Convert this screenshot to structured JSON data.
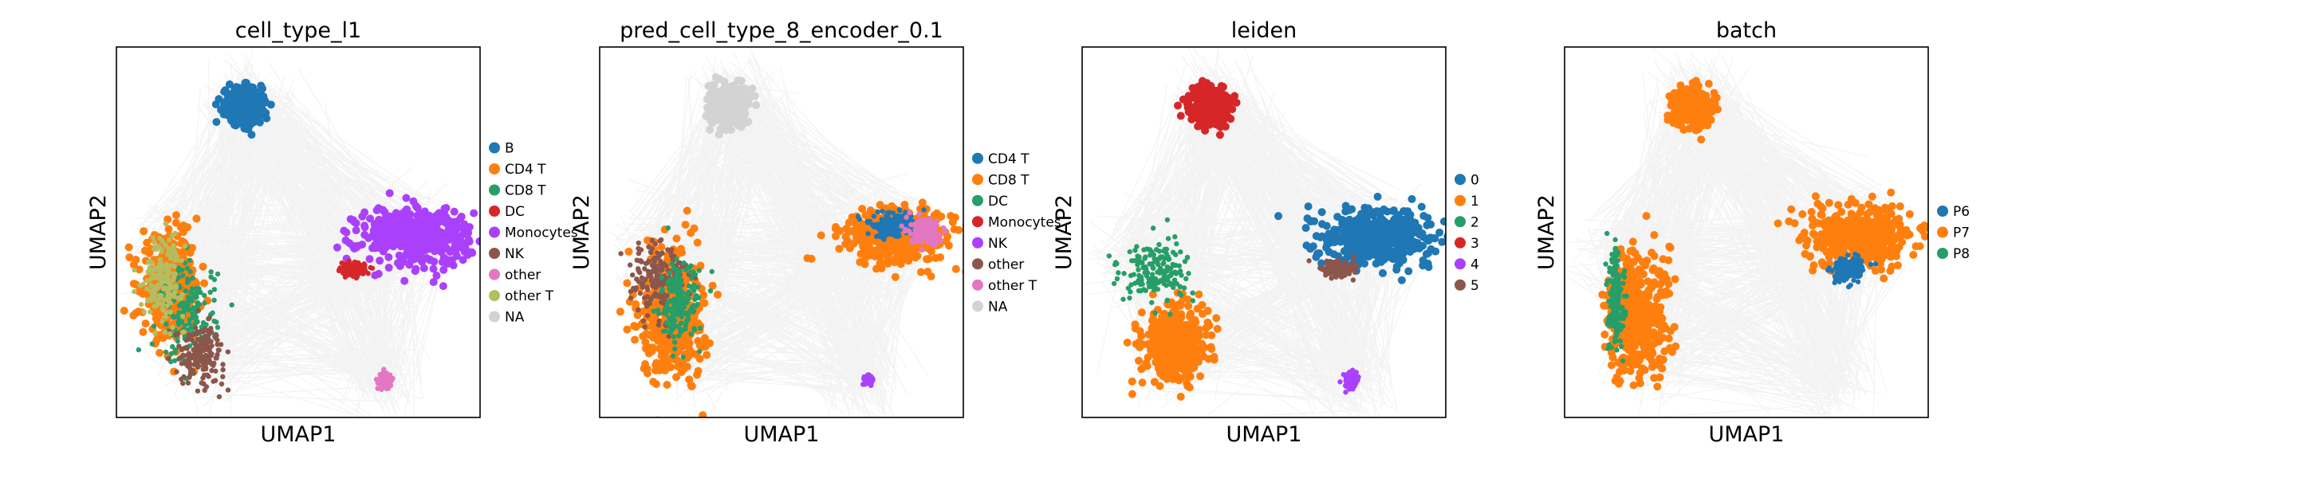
{
  "figure": {
    "panels": [
      {
        "title": "cell_type_l1",
        "xlabel": "UMAP1",
        "ylabel": "UMAP2",
        "legend": [
          {
            "label": "B",
            "color": "#1f77b4"
          },
          {
            "label": "CD4 T",
            "color": "#ff7f0e"
          },
          {
            "label": "CD8 T",
            "color": "#279e68"
          },
          {
            "label": "DC",
            "color": "#d62728"
          },
          {
            "label": "Monocytes",
            "color": "#aa40fc"
          },
          {
            "label": "NK",
            "color": "#8c564b"
          },
          {
            "label": "other",
            "color": "#e377c2"
          },
          {
            "label": "other T",
            "color": "#b5bd61"
          },
          {
            "label": "NA",
            "color": "#d3d3d3"
          }
        ]
      },
      {
        "title": "pred_cell_type_8_encoder_0.1",
        "xlabel": "UMAP1",
        "ylabel": "UMAP2",
        "legend": [
          {
            "label": "CD4 T",
            "color": "#1f77b4"
          },
          {
            "label": "CD8 T",
            "color": "#ff7f0e"
          },
          {
            "label": "DC",
            "color": "#279e68"
          },
          {
            "label": "Monocytes",
            "color": "#d62728"
          },
          {
            "label": "NK",
            "color": "#aa40fc"
          },
          {
            "label": "other",
            "color": "#8c564b"
          },
          {
            "label": "other T",
            "color": "#e377c2"
          },
          {
            "label": "NA",
            "color": "#d3d3d3"
          }
        ]
      },
      {
        "title": "leiden",
        "xlabel": "UMAP1",
        "ylabel": "UMAP2",
        "legend": [
          {
            "label": "0",
            "color": "#1f77b4"
          },
          {
            "label": "1",
            "color": "#ff7f0e"
          },
          {
            "label": "2",
            "color": "#279e68"
          },
          {
            "label": "3",
            "color": "#d62728"
          },
          {
            "label": "4",
            "color": "#aa40fc"
          },
          {
            "label": "5",
            "color": "#8c564b"
          }
        ]
      },
      {
        "title": "batch",
        "xlabel": "UMAP1",
        "ylabel": "UMAP2",
        "legend": [
          {
            "label": "P6",
            "color": "#1f77b4"
          },
          {
            "label": "P7",
            "color": "#ff7f0e"
          },
          {
            "label": "P8",
            "color": "#279e68"
          }
        ]
      }
    ]
  },
  "chart_data": [
    {
      "type": "scatter",
      "title": "cell_type_l1",
      "xlabel": "UMAP1",
      "ylabel": "UMAP2",
      "xticks": [],
      "yticks": [],
      "grid": false,
      "legend_position": "right",
      "paga_edges": true,
      "edge_color": "#808080",
      "clusters": [
        {
          "name": "B",
          "color": "#1f77b4",
          "center": [
            0.35,
            0.84
          ],
          "spread": [
            0.045,
            0.045
          ],
          "rank": 1
        },
        {
          "name": "CD4 T",
          "color": "#ff7f0e",
          "center": [
            0.15,
            0.35
          ],
          "spread": [
            0.07,
            0.12
          ],
          "rank": 1
        },
        {
          "name": "CD8 T",
          "color": "#279e68",
          "center": [
            0.2,
            0.28
          ],
          "spread": [
            0.07,
            0.12
          ],
          "rank": 2
        },
        {
          "name": "NK",
          "color": "#8c564b",
          "center": [
            0.23,
            0.17
          ],
          "spread": [
            0.06,
            0.07
          ],
          "rank": 3
        },
        {
          "name": "Monocytes",
          "color": "#aa40fc",
          "center": [
            0.82,
            0.49
          ],
          "spread": [
            0.14,
            0.07
          ],
          "rank": 1
        },
        {
          "name": "DC",
          "color": "#d62728",
          "center": [
            0.65,
            0.4
          ],
          "spread": [
            0.03,
            0.015
          ],
          "rank": 2
        },
        {
          "name": "other",
          "color": "#e377c2",
          "center": [
            0.74,
            0.1
          ],
          "spread": [
            0.015,
            0.02
          ],
          "rank": 2
        },
        {
          "name": "other T",
          "color": "#b5bd61",
          "center": [
            0.13,
            0.38
          ],
          "spread": [
            0.05,
            0.1
          ],
          "rank": 4
        },
        {
          "name": "NA",
          "color": "#d3d3d3",
          "center": [
            0.35,
            0.86
          ],
          "spread": [
            0.02,
            0.02
          ],
          "rank": 0
        }
      ]
    },
    {
      "type": "scatter",
      "title": "pred_cell_type_8_encoder_0.1",
      "xlabel": "UMAP1",
      "ylabel": "UMAP2",
      "xticks": [],
      "yticks": [],
      "grid": false,
      "legend_position": "right",
      "paga_edges": true,
      "edge_color": "#808080",
      "clusters": [
        {
          "name": "NA",
          "color": "#d3d3d3",
          "center": [
            0.35,
            0.84
          ],
          "spread": [
            0.045,
            0.045
          ],
          "rank": 1
        },
        {
          "name": "CD8 T",
          "color": "#ff7f0e",
          "center": [
            0.2,
            0.28
          ],
          "spread": [
            0.08,
            0.16
          ],
          "rank": 1
        },
        {
          "name": "other",
          "color": "#8c564b",
          "center": [
            0.16,
            0.38
          ],
          "spread": [
            0.07,
            0.1
          ],
          "rank": 2
        },
        {
          "name": "CD8 T",
          "color": "#ff7f0e",
          "center": [
            0.82,
            0.49
          ],
          "spread": [
            0.14,
            0.07
          ],
          "rank": 1
        },
        {
          "name": "CD4 T",
          "color": "#1f77b4",
          "center": [
            0.8,
            0.52
          ],
          "spread": [
            0.06,
            0.03
          ],
          "rank": 2
        },
        {
          "name": "DC",
          "color": "#279e68",
          "center": [
            0.22,
            0.3
          ],
          "spread": [
            0.05,
            0.1
          ],
          "rank": 3
        },
        {
          "name": "other T",
          "color": "#e377c2",
          "center": [
            0.9,
            0.5
          ],
          "spread": [
            0.04,
            0.03
          ],
          "rank": 3
        },
        {
          "name": "NK",
          "color": "#aa40fc",
          "center": [
            0.74,
            0.1
          ],
          "spread": [
            0.01,
            0.01
          ],
          "rank": 3
        }
      ]
    },
    {
      "type": "scatter",
      "title": "leiden",
      "xlabel": "UMAP1",
      "ylabel": "UMAP2",
      "xticks": [],
      "yticks": [],
      "grid": false,
      "legend_position": "right",
      "paga_edges": true,
      "edge_color": "#808080",
      "clusters": [
        {
          "name": "3",
          "color": "#d62728",
          "center": [
            0.35,
            0.84
          ],
          "spread": [
            0.045,
            0.045
          ],
          "rank": 1
        },
        {
          "name": "2",
          "color": "#279e68",
          "center": [
            0.2,
            0.39
          ],
          "spread": [
            0.09,
            0.08
          ],
          "rank": 2
        },
        {
          "name": "1",
          "color": "#ff7f0e",
          "center": [
            0.25,
            0.2
          ],
          "spread": [
            0.08,
            0.09
          ],
          "rank": 1
        },
        {
          "name": "0",
          "color": "#1f77b4",
          "center": [
            0.82,
            0.49
          ],
          "spread": [
            0.14,
            0.07
          ],
          "rank": 1
        },
        {
          "name": "5",
          "color": "#8c564b",
          "center": [
            0.7,
            0.4
          ],
          "spread": [
            0.04,
            0.02
          ],
          "rank": 2
        },
        {
          "name": "4",
          "color": "#aa40fc",
          "center": [
            0.74,
            0.1
          ],
          "spread": [
            0.015,
            0.02
          ],
          "rank": 2
        }
      ]
    },
    {
      "type": "scatter",
      "title": "batch",
      "xlabel": "UMAP1",
      "ylabel": "UMAP2",
      "xticks": [],
      "yticks": [],
      "grid": false,
      "legend_position": "right",
      "paga_edges": true,
      "edge_color": "#808080",
      "clusters": [
        {
          "name": "P7",
          "color": "#ff7f0e",
          "center": [
            0.35,
            0.84
          ],
          "spread": [
            0.045,
            0.045
          ],
          "rank": 1
        },
        {
          "name": "P7",
          "color": "#ff7f0e",
          "center": [
            0.2,
            0.28
          ],
          "spread": [
            0.08,
            0.16
          ],
          "rank": 1
        },
        {
          "name": "P7",
          "color": "#ff7f0e",
          "center": [
            0.82,
            0.49
          ],
          "spread": [
            0.14,
            0.07
          ],
          "rank": 1
        },
        {
          "name": "P8",
          "color": "#279e68",
          "center": [
            0.14,
            0.32
          ],
          "spread": [
            0.02,
            0.12
          ],
          "rank": 2
        },
        {
          "name": "P6",
          "color": "#1f77b4",
          "center": [
            0.78,
            0.4
          ],
          "spread": [
            0.04,
            0.03
          ],
          "rank": 2
        }
      ]
    }
  ]
}
